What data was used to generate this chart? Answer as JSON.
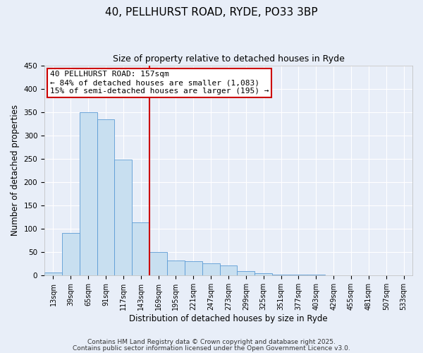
{
  "title1": "40, PELLHURST ROAD, RYDE, PO33 3BP",
  "title2": "Size of property relative to detached houses in Ryde",
  "xlabel": "Distribution of detached houses by size in Ryde",
  "ylabel": "Number of detached properties",
  "bar_labels": [
    "13sqm",
    "39sqm",
    "65sqm",
    "91sqm",
    "117sqm",
    "143sqm",
    "169sqm",
    "195sqm",
    "221sqm",
    "247sqm",
    "273sqm",
    "299sqm",
    "325sqm",
    "351sqm",
    "377sqm",
    "403sqm",
    "429sqm",
    "455sqm",
    "481sqm",
    "507sqm",
    "533sqm"
  ],
  "bar_values": [
    6,
    90,
    350,
    335,
    248,
    113,
    50,
    32,
    30,
    25,
    21,
    9,
    4,
    1,
    1,
    1,
    0,
    0,
    0,
    0,
    0
  ],
  "bar_color": "#c8dff0",
  "bar_edge_color": "#5b9bd5",
  "vline_x": 5.5,
  "vline_color": "#cc0000",
  "annotation_title": "40 PELLHURST ROAD: 157sqm",
  "annotation_line1": "← 84% of detached houses are smaller (1,083)",
  "annotation_line2": "15% of semi-detached houses are larger (195) →",
  "annotation_box_facecolor": "#ffffff",
  "annotation_box_edgecolor": "#cc0000",
  "ylim": [
    0,
    450
  ],
  "yticks": [
    0,
    50,
    100,
    150,
    200,
    250,
    300,
    350,
    400,
    450
  ],
  "footnote1": "Contains HM Land Registry data © Crown copyright and database right 2025.",
  "footnote2": "Contains public sector information licensed under the Open Government Licence v3.0.",
  "bg_color": "#e8eef8",
  "grid_color": "#ffffff",
  "title1_fontsize": 11,
  "title2_fontsize": 9,
  "axis_label_fontsize": 8.5,
  "tick_fontsize": 7,
  "annotation_fontsize": 8,
  "footnote_fontsize": 6.5
}
